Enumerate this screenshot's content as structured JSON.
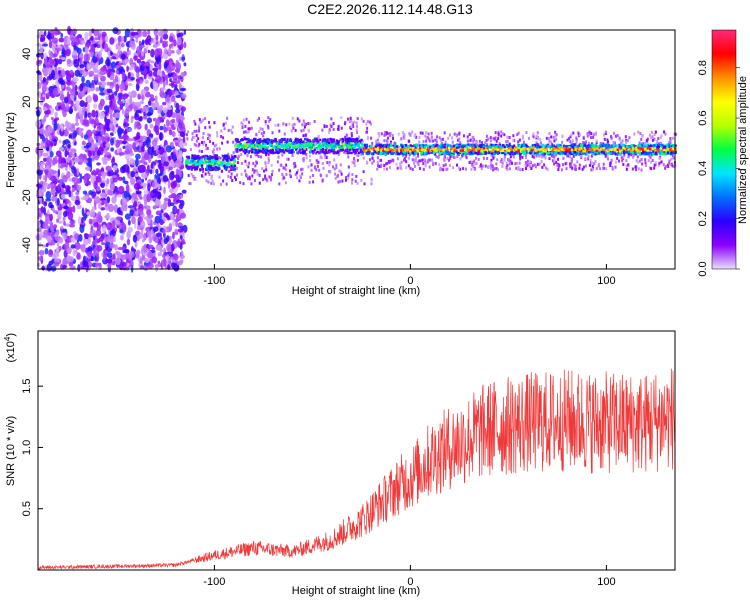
{
  "title": "C2E2.2026.112.14.48.G13",
  "chart_data": [
    {
      "type": "heatmap",
      "xlabel": "Height of straight line (km)",
      "ylabel": "Frequency (Hz)",
      "xlim": [
        -190,
        135
      ],
      "ylim": [
        -50,
        50
      ],
      "xticks": [
        -100,
        0,
        100
      ],
      "yticks": [
        -40,
        -20,
        0,
        20,
        40
      ],
      "colorbar": {
        "label": "Normalized spectral amplitude",
        "range": [
          0,
          0.95
        ],
        "ticks": [
          "0.0",
          "0.2",
          "0.4",
          "0.6",
          "0.8"
        ],
        "colors": [
          "#e9ddfb",
          "#8b00ff",
          "#2b00ff",
          "#0070ff",
          "#00e5ff",
          "#00ff40",
          "#b8ff00",
          "#ffff00",
          "#ff9000",
          "#ff0000",
          "#ff2a7a"
        ]
      },
      "description_points": [
        {
          "x": -190,
          "y_center": 0,
          "region": "noise",
          "amplitude": 0.1
        },
        {
          "x": -115,
          "y_center": 0,
          "region": "noise",
          "amplitude": 0.1
        },
        {
          "x": -110,
          "y_center": -5,
          "region": "signal",
          "amplitude": 0.3
        },
        {
          "x": -60,
          "y_center": 2,
          "region": "signal",
          "amplitude": 0.4
        },
        {
          "x": -25,
          "y_center": 1,
          "region": "signal",
          "amplitude": 0.8
        },
        {
          "x": 135,
          "y_center": 0,
          "region": "signal",
          "amplitude": 0.9
        }
      ]
    },
    {
      "type": "line",
      "xlabel": "Height of straight line (km)",
      "ylabel": "SNR (10 * v/v)",
      "exponent_label": "(x10",
      "exponent_power": "4",
      "exponent_close": ")",
      "xlim": [
        -190,
        135
      ],
      "ylim": [
        0,
        1.95
      ],
      "xticks": [
        -100,
        0,
        100
      ],
      "yticks": [
        0.5,
        1.0,
        1.5
      ],
      "ytick_labels": [
        "0.5",
        "1.0",
        "1.5"
      ],
      "color": "#f03a3a",
      "x": [
        -190,
        -150,
        -120,
        -100,
        -80,
        -60,
        -40,
        -25,
        -15,
        -5,
        0,
        10,
        20,
        40,
        60,
        80,
        100,
        120,
        135
      ],
      "y": [
        0.02,
        0.03,
        0.04,
        0.12,
        0.18,
        0.15,
        0.25,
        0.4,
        0.55,
        0.7,
        0.75,
        0.9,
        1.0,
        1.15,
        1.2,
        1.22,
        1.2,
        1.2,
        1.25
      ]
    }
  ]
}
